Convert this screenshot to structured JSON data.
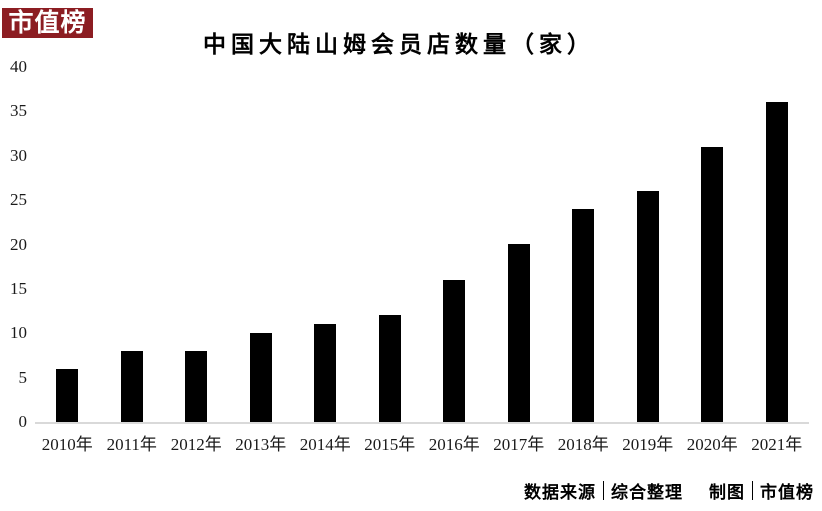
{
  "logo": {
    "text": "市值榜"
  },
  "title": "中国大陆山姆会员店数量（家）",
  "footer": {
    "source_label": "数据来源",
    "source_value": "综合整理",
    "maker_label": "制图",
    "maker_value": "市值榜"
  },
  "colors": {
    "logo_bg": "#8c1d22",
    "logo_text": "#ffffff",
    "bar": "#000000",
    "baseline": "#d9d9d9",
    "title_text": "#000000"
  },
  "chart_data": {
    "type": "bar",
    "title": "中国大陆山姆会员店数量（家）",
    "categories": [
      "2010年",
      "2011年",
      "2012年",
      "2013年",
      "2014年",
      "2015年",
      "2016年",
      "2017年",
      "2018年",
      "2019年",
      "2020年",
      "2021年"
    ],
    "values": [
      6,
      8,
      8,
      10,
      11,
      12,
      16,
      20,
      24,
      26,
      31,
      36
    ],
    "xlabel": "",
    "ylabel": "",
    "ylim": [
      0,
      40
    ],
    "yticks": [
      0,
      5,
      10,
      15,
      20,
      25,
      30,
      35,
      40
    ],
    "grid": false,
    "legend": false,
    "bar_color": "#000000"
  }
}
